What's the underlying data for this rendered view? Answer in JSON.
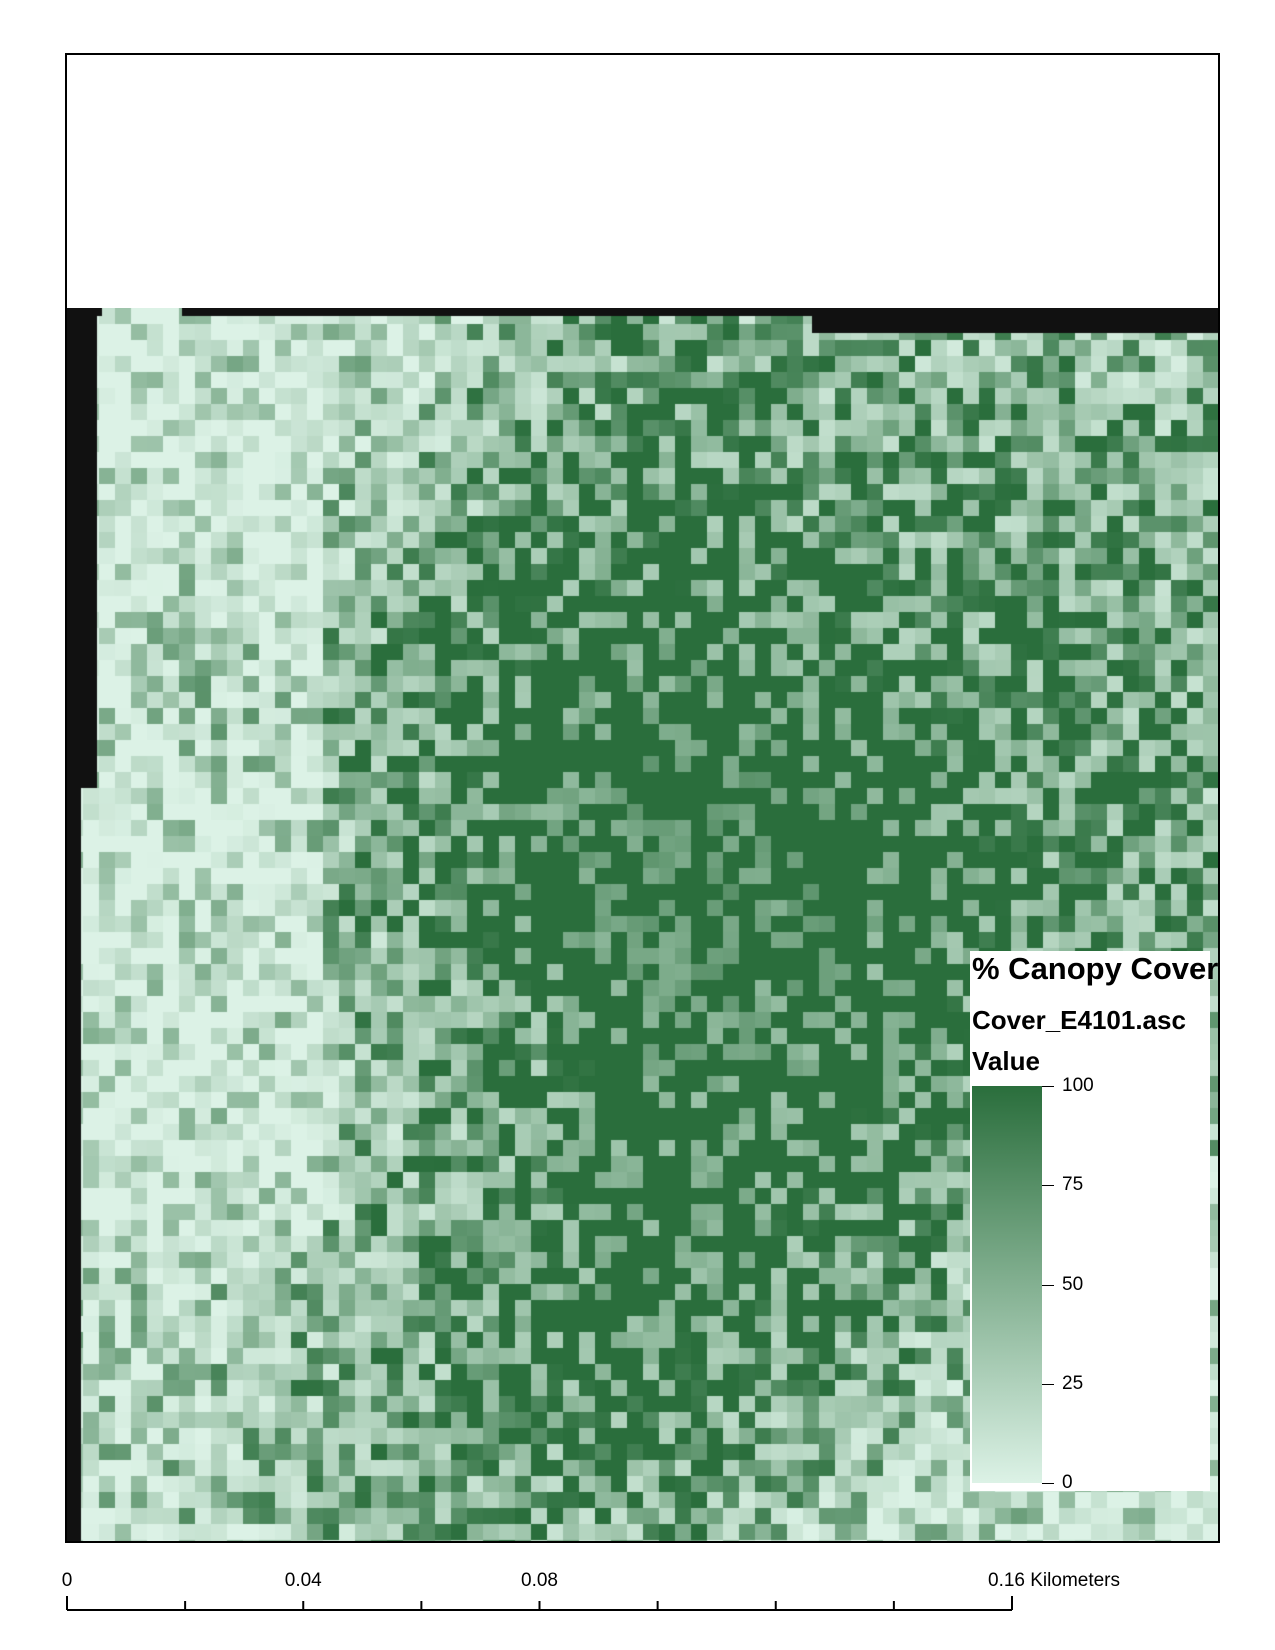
{
  "legend": {
    "title": "% Canopy Cover",
    "layer_name": "Cover_E4101.asc",
    "field": "Value",
    "ticks": [
      {
        "value": 100,
        "label": "100"
      },
      {
        "value": 75,
        "label": "75"
      },
      {
        "value": 50,
        "label": "50"
      },
      {
        "value": 25,
        "label": "25"
      },
      {
        "value": 0,
        "label": "0"
      }
    ],
    "colors": {
      "high": "#2a6e3c",
      "low": "#dcf2e6",
      "nodata": "#111111"
    }
  },
  "scalebar": {
    "unit": "Kilometers",
    "max": 0.16,
    "labels": [
      {
        "value": 0,
        "text": "0"
      },
      {
        "value": 0.04,
        "text": "0.04"
      },
      {
        "value": 0.08,
        "text": "0.08"
      },
      {
        "value": 0.16,
        "text": "0.16 Kilometers"
      }
    ],
    "divisions": [
      0,
      0.02,
      0.04,
      0.06,
      0.08,
      0.1,
      0.12,
      0.14,
      0.16
    ]
  }
}
